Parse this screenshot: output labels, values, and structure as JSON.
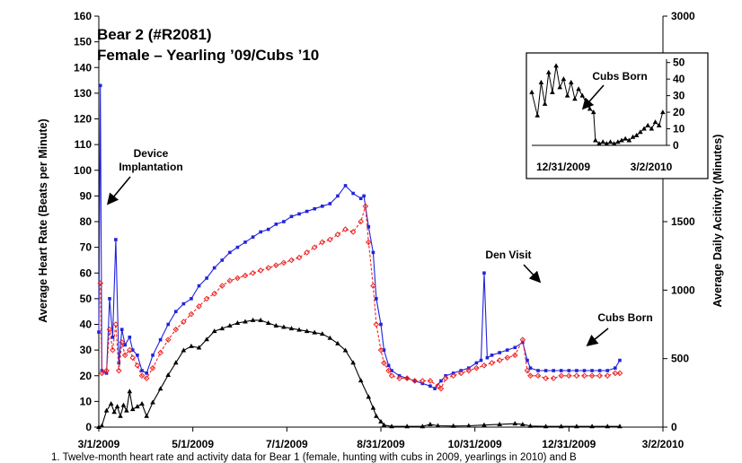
{
  "chart_data": {
    "type": "line",
    "title": "Bear 2 (#R2081)",
    "subtitle": "Female – Yearling ’09/Cubs ’10",
    "ylabel_left": "Average Heart Rate (Beats per Minute)",
    "ylabel_right": "Average Daily Acitivity (Minutes)",
    "xlabel": "",
    "x_ticks": [
      "3/1/2009",
      "5/1/2009",
      "7/1/2009",
      "8/31/2009",
      "10/31/2009",
      "12/31/2009",
      "3/2/2010"
    ],
    "y_left_ticks": [
      0,
      10,
      20,
      30,
      40,
      50,
      60,
      70,
      80,
      90,
      100,
      110,
      120,
      130,
      140,
      150,
      160
    ],
    "y_right_ticks": [
      0,
      500,
      1000,
      1500,
      2000,
      2500,
      3000
    ],
    "ylim_left": [
      0,
      160
    ],
    "ylim_right": [
      0,
      3000
    ],
    "grid": false,
    "series_colors": {
      "max_heart_rate": "#2222dd",
      "mean_heart_rate": "#ee2222",
      "activity": "#000000"
    },
    "series": [
      {
        "key": "max_heart_rate",
        "axis": "left",
        "values": [
          [
            0,
            37
          ],
          [
            1,
            133
          ],
          [
            2,
            22
          ],
          [
            5,
            21
          ],
          [
            7,
            50
          ],
          [
            9,
            35
          ],
          [
            11,
            73
          ],
          [
            13,
            25
          ],
          [
            15,
            38
          ],
          [
            17,
            32
          ],
          [
            20,
            35
          ],
          [
            22,
            30
          ],
          [
            25,
            28
          ],
          [
            28,
            22
          ],
          [
            31,
            21
          ],
          [
            35,
            28
          ],
          [
            40,
            34
          ],
          [
            45,
            40
          ],
          [
            50,
            45
          ],
          [
            55,
            48
          ],
          [
            60,
            50
          ],
          [
            65,
            55
          ],
          [
            70,
            58
          ],
          [
            75,
            62
          ],
          [
            80,
            65
          ],
          [
            85,
            68
          ],
          [
            90,
            70
          ],
          [
            95,
            72
          ],
          [
            100,
            74
          ],
          [
            105,
            76
          ],
          [
            110,
            77
          ],
          [
            115,
            79
          ],
          [
            120,
            80
          ],
          [
            125,
            82
          ],
          [
            130,
            83
          ],
          [
            135,
            84
          ],
          [
            140,
            85
          ],
          [
            145,
            86
          ],
          [
            150,
            87
          ],
          [
            155,
            90
          ],
          [
            160,
            94
          ],
          [
            165,
            91
          ],
          [
            170,
            89
          ],
          [
            172,
            90
          ],
          [
            175,
            78
          ],
          [
            178,
            68
          ],
          [
            180,
            50
          ],
          [
            183,
            40
          ],
          [
            185,
            30
          ],
          [
            188,
            24
          ],
          [
            190,
            22
          ],
          [
            195,
            20
          ],
          [
            200,
            19
          ],
          [
            205,
            18
          ],
          [
            210,
            17
          ],
          [
            215,
            16
          ],
          [
            218,
            15
          ],
          [
            222,
            18
          ],
          [
            225,
            20
          ],
          [
            230,
            21
          ],
          [
            235,
            22
          ],
          [
            240,
            23
          ],
          [
            245,
            25
          ],
          [
            248,
            26
          ],
          [
            250,
            60
          ],
          [
            252,
            27
          ],
          [
            255,
            28
          ],
          [
            260,
            29
          ],
          [
            265,
            30
          ],
          [
            270,
            31
          ],
          [
            275,
            33
          ],
          [
            278,
            26
          ],
          [
            280,
            23
          ],
          [
            285,
            22
          ],
          [
            290,
            22
          ],
          [
            295,
            22
          ],
          [
            300,
            22
          ],
          [
            305,
            22
          ],
          [
            310,
            22
          ],
          [
            315,
            22
          ],
          [
            320,
            22
          ],
          [
            325,
            22
          ],
          [
            330,
            22
          ],
          [
            335,
            23
          ],
          [
            338,
            26
          ]
        ]
      },
      {
        "key": "mean_heart_rate",
        "axis": "left",
        "values": [
          [
            1,
            56
          ],
          [
            2,
            21
          ],
          [
            5,
            22
          ],
          [
            7,
            38
          ],
          [
            9,
            30
          ],
          [
            11,
            40
          ],
          [
            13,
            22
          ],
          [
            15,
            33
          ],
          [
            17,
            28
          ],
          [
            20,
            30
          ],
          [
            22,
            27
          ],
          [
            25,
            24
          ],
          [
            28,
            20
          ],
          [
            31,
            19
          ],
          [
            35,
            23
          ],
          [
            40,
            29
          ],
          [
            45,
            34
          ],
          [
            50,
            38
          ],
          [
            55,
            41
          ],
          [
            60,
            44
          ],
          [
            65,
            47
          ],
          [
            70,
            50
          ],
          [
            75,
            52
          ],
          [
            80,
            55
          ],
          [
            85,
            57
          ],
          [
            90,
            58
          ],
          [
            95,
            59
          ],
          [
            100,
            60
          ],
          [
            105,
            61
          ],
          [
            110,
            62
          ],
          [
            115,
            63
          ],
          [
            120,
            64
          ],
          [
            125,
            65
          ],
          [
            130,
            66
          ],
          [
            135,
            68
          ],
          [
            140,
            70
          ],
          [
            145,
            72
          ],
          [
            150,
            73
          ],
          [
            155,
            75
          ],
          [
            160,
            77
          ],
          [
            165,
            76
          ],
          [
            170,
            80
          ],
          [
            173,
            86
          ],
          [
            175,
            72
          ],
          [
            178,
            55
          ],
          [
            180,
            40
          ],
          [
            183,
            30
          ],
          [
            185,
            25
          ],
          [
            188,
            22
          ],
          [
            190,
            20
          ],
          [
            195,
            19
          ],
          [
            200,
            19
          ],
          [
            205,
            18
          ],
          [
            210,
            18
          ],
          [
            215,
            18
          ],
          [
            220,
            16
          ],
          [
            222,
            15
          ],
          [
            225,
            19
          ],
          [
            230,
            20
          ],
          [
            235,
            21
          ],
          [
            240,
            22
          ],
          [
            245,
            23
          ],
          [
            250,
            24
          ],
          [
            255,
            25
          ],
          [
            260,
            26
          ],
          [
            265,
            27
          ],
          [
            270,
            28
          ],
          [
            275,
            34
          ],
          [
            278,
            22
          ],
          [
            280,
            20
          ],
          [
            285,
            20
          ],
          [
            290,
            19
          ],
          [
            295,
            19
          ],
          [
            300,
            20
          ],
          [
            305,
            20
          ],
          [
            310,
            20
          ],
          [
            315,
            20
          ],
          [
            320,
            20
          ],
          [
            325,
            20
          ],
          [
            330,
            20
          ],
          [
            335,
            21
          ],
          [
            338,
            21
          ]
        ]
      },
      {
        "key": "activity",
        "axis": "right",
        "values": [
          [
            0,
            0
          ],
          [
            2,
            10
          ],
          [
            5,
            120
          ],
          [
            8,
            170
          ],
          [
            10,
            110
          ],
          [
            12,
            150
          ],
          [
            14,
            80
          ],
          [
            16,
            160
          ],
          [
            18,
            120
          ],
          [
            20,
            260
          ],
          [
            22,
            130
          ],
          [
            25,
            150
          ],
          [
            28,
            170
          ],
          [
            31,
            80
          ],
          [
            35,
            180
          ],
          [
            40,
            280
          ],
          [
            45,
            380
          ],
          [
            50,
            470
          ],
          [
            55,
            560
          ],
          [
            60,
            590
          ],
          [
            65,
            580
          ],
          [
            70,
            640
          ],
          [
            75,
            700
          ],
          [
            80,
            720
          ],
          [
            85,
            740
          ],
          [
            90,
            760
          ],
          [
            95,
            770
          ],
          [
            100,
            780
          ],
          [
            105,
            780
          ],
          [
            110,
            760
          ],
          [
            115,
            740
          ],
          [
            120,
            730
          ],
          [
            125,
            720
          ],
          [
            130,
            710
          ],
          [
            135,
            700
          ],
          [
            140,
            690
          ],
          [
            145,
            680
          ],
          [
            150,
            650
          ],
          [
            155,
            610
          ],
          [
            160,
            560
          ],
          [
            165,
            470
          ],
          [
            170,
            340
          ],
          [
            175,
            220
          ],
          [
            178,
            140
          ],
          [
            180,
            80
          ],
          [
            183,
            40
          ],
          [
            185,
            15
          ],
          [
            190,
            5
          ],
          [
            200,
            5
          ],
          [
            210,
            5
          ],
          [
            215,
            20
          ],
          [
            220,
            10
          ],
          [
            230,
            8
          ],
          [
            240,
            10
          ],
          [
            250,
            15
          ],
          [
            260,
            20
          ],
          [
            270,
            25
          ],
          [
            275,
            20
          ],
          [
            280,
            8
          ],
          [
            290,
            5
          ],
          [
            300,
            5
          ],
          [
            310,
            5
          ],
          [
            320,
            5
          ],
          [
            330,
            5
          ],
          [
            338,
            5
          ]
        ]
      }
    ],
    "annotations": [
      {
        "key": "device",
        "lines": [
          "Device",
          "Implantation"
        ]
      },
      {
        "key": "den",
        "lines": [
          "Den Visit"
        ]
      },
      {
        "key": "cubs",
        "lines": [
          "Cubs Born"
        ]
      }
    ],
    "inset": {
      "title": "Cubs Born",
      "y_ticks": [
        0,
        10,
        20,
        30,
        40,
        50
      ],
      "x_ticks": [
        "12/31/2009",
        "3/2/2010"
      ],
      "values": [
        [
          0,
          32
        ],
        [
          3,
          18
        ],
        [
          5,
          38
        ],
        [
          7,
          25
        ],
        [
          9,
          44
        ],
        [
          11,
          32
        ],
        [
          13,
          48
        ],
        [
          15,
          35
        ],
        [
          17,
          40
        ],
        [
          19,
          30
        ],
        [
          21,
          38
        ],
        [
          23,
          28
        ],
        [
          25,
          34
        ],
        [
          27,
          30
        ],
        [
          29,
          26
        ],
        [
          31,
          22
        ],
        [
          33,
          20
        ],
        [
          34,
          3
        ],
        [
          36,
          1
        ],
        [
          38,
          2
        ],
        [
          40,
          1
        ],
        [
          42,
          2
        ],
        [
          44,
          1
        ],
        [
          46,
          2
        ],
        [
          48,
          3
        ],
        [
          50,
          4
        ],
        [
          52,
          3
        ],
        [
          54,
          5
        ],
        [
          56,
          6
        ],
        [
          58,
          8
        ],
        [
          60,
          10
        ],
        [
          62,
          12
        ],
        [
          64,
          10
        ],
        [
          66,
          14
        ],
        [
          68,
          12
        ],
        [
          70,
          20
        ]
      ]
    }
  },
  "caption": {
    "text": "1. Twelve-month heart rate and activity data for Bear 1 (female, hunting with cubs in 2009, yearlings in 2010) and B"
  }
}
